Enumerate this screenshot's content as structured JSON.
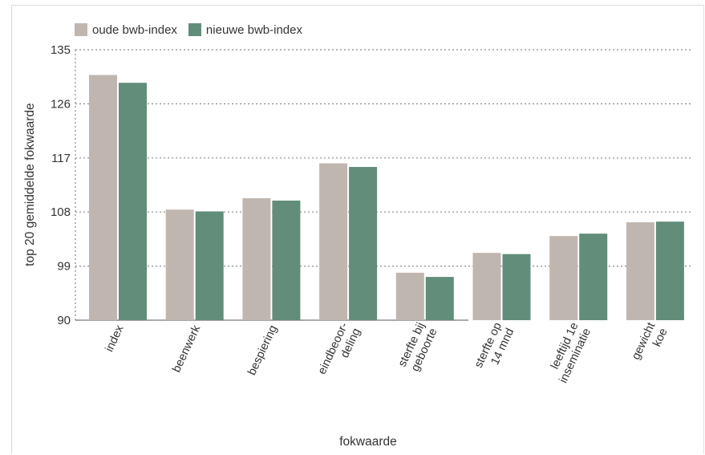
{
  "chart_data": {
    "type": "bar",
    "categories": [
      [
        "index"
      ],
      [
        "beenwerk"
      ],
      [
        "bespiering"
      ],
      [
        "eindbeoor-",
        "deling"
      ],
      [
        "sterfte bij",
        "geboorte"
      ],
      [
        "sterfte op",
        "14 mnd"
      ],
      [
        "leeftijd 1e",
        "inseminatie"
      ],
      [
        "gewicht",
        "koe"
      ]
    ],
    "series": [
      {
        "name": "oude bwb-index",
        "color": "#c0b6b0",
        "values": [
          130.8,
          108.4,
          110.3,
          116.1,
          97.9,
          101.2,
          104.0,
          106.3
        ]
      },
      {
        "name": "nieuwe bwb-index",
        "color": "#628d7b",
        "values": [
          129.5,
          108.1,
          109.9,
          115.5,
          97.2,
          101.0,
          104.4,
          106.4
        ]
      }
    ],
    "ylim": [
      90,
      135
    ],
    "yticks": [
      90,
      99,
      108,
      117,
      126,
      135
    ],
    "ylabel": "top 20 gemiddelde fokwaarde",
    "xlabel": "fokwaarde",
    "grid": "horizontal-dotted",
    "legend": "top-left"
  }
}
